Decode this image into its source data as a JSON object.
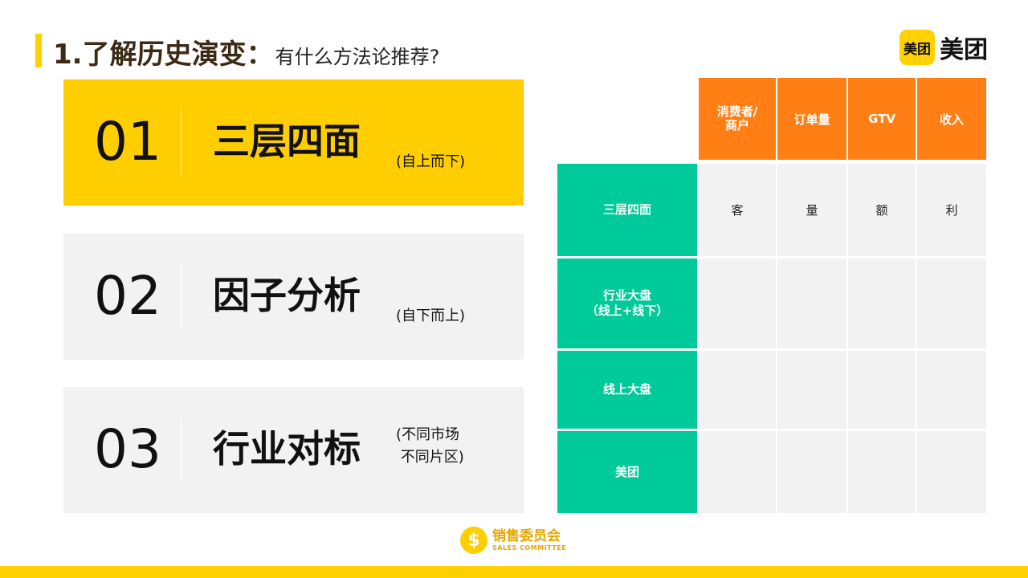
{
  "header": {
    "title": "1.了解历史演变：",
    "subtitle": "有什么方法论推荐?"
  },
  "logo": {
    "badge": "美团",
    "text": "美团"
  },
  "colors": {
    "brand_yellow": "#FFD100",
    "card_active": "#FFCE00",
    "card_inactive": "#F2F2F2",
    "header_orange": "#FF7F15",
    "row_green": "#00C99A"
  },
  "methods": [
    {
      "number": "01",
      "title": "三层四面",
      "note": "(自上而下)"
    },
    {
      "number": "02",
      "title": "因子分析",
      "note": "(自下而上)"
    },
    {
      "number": "03",
      "title": "行业对标",
      "note": "(不同市场\n 不同片区)"
    }
  ],
  "matrix": {
    "columns": [
      "消费者/\n商户",
      "订单量",
      "GTV",
      "收入"
    ],
    "rows": [
      {
        "label": "三层四面",
        "cells": [
          "客",
          "量",
          "额",
          "利"
        ]
      },
      {
        "label": "行业大盘\n（线上+线下）",
        "cells": [
          "",
          "",
          "",
          ""
        ]
      },
      {
        "label": "线上大盘",
        "cells": [
          "",
          "",
          "",
          ""
        ]
      },
      {
        "label": "美团",
        "cells": [
          "",
          "",
          "",
          ""
        ]
      }
    ]
  },
  "footer": {
    "mark": "$",
    "name_cn": "销售委员会",
    "name_en": "SALES COMMITTEE"
  }
}
